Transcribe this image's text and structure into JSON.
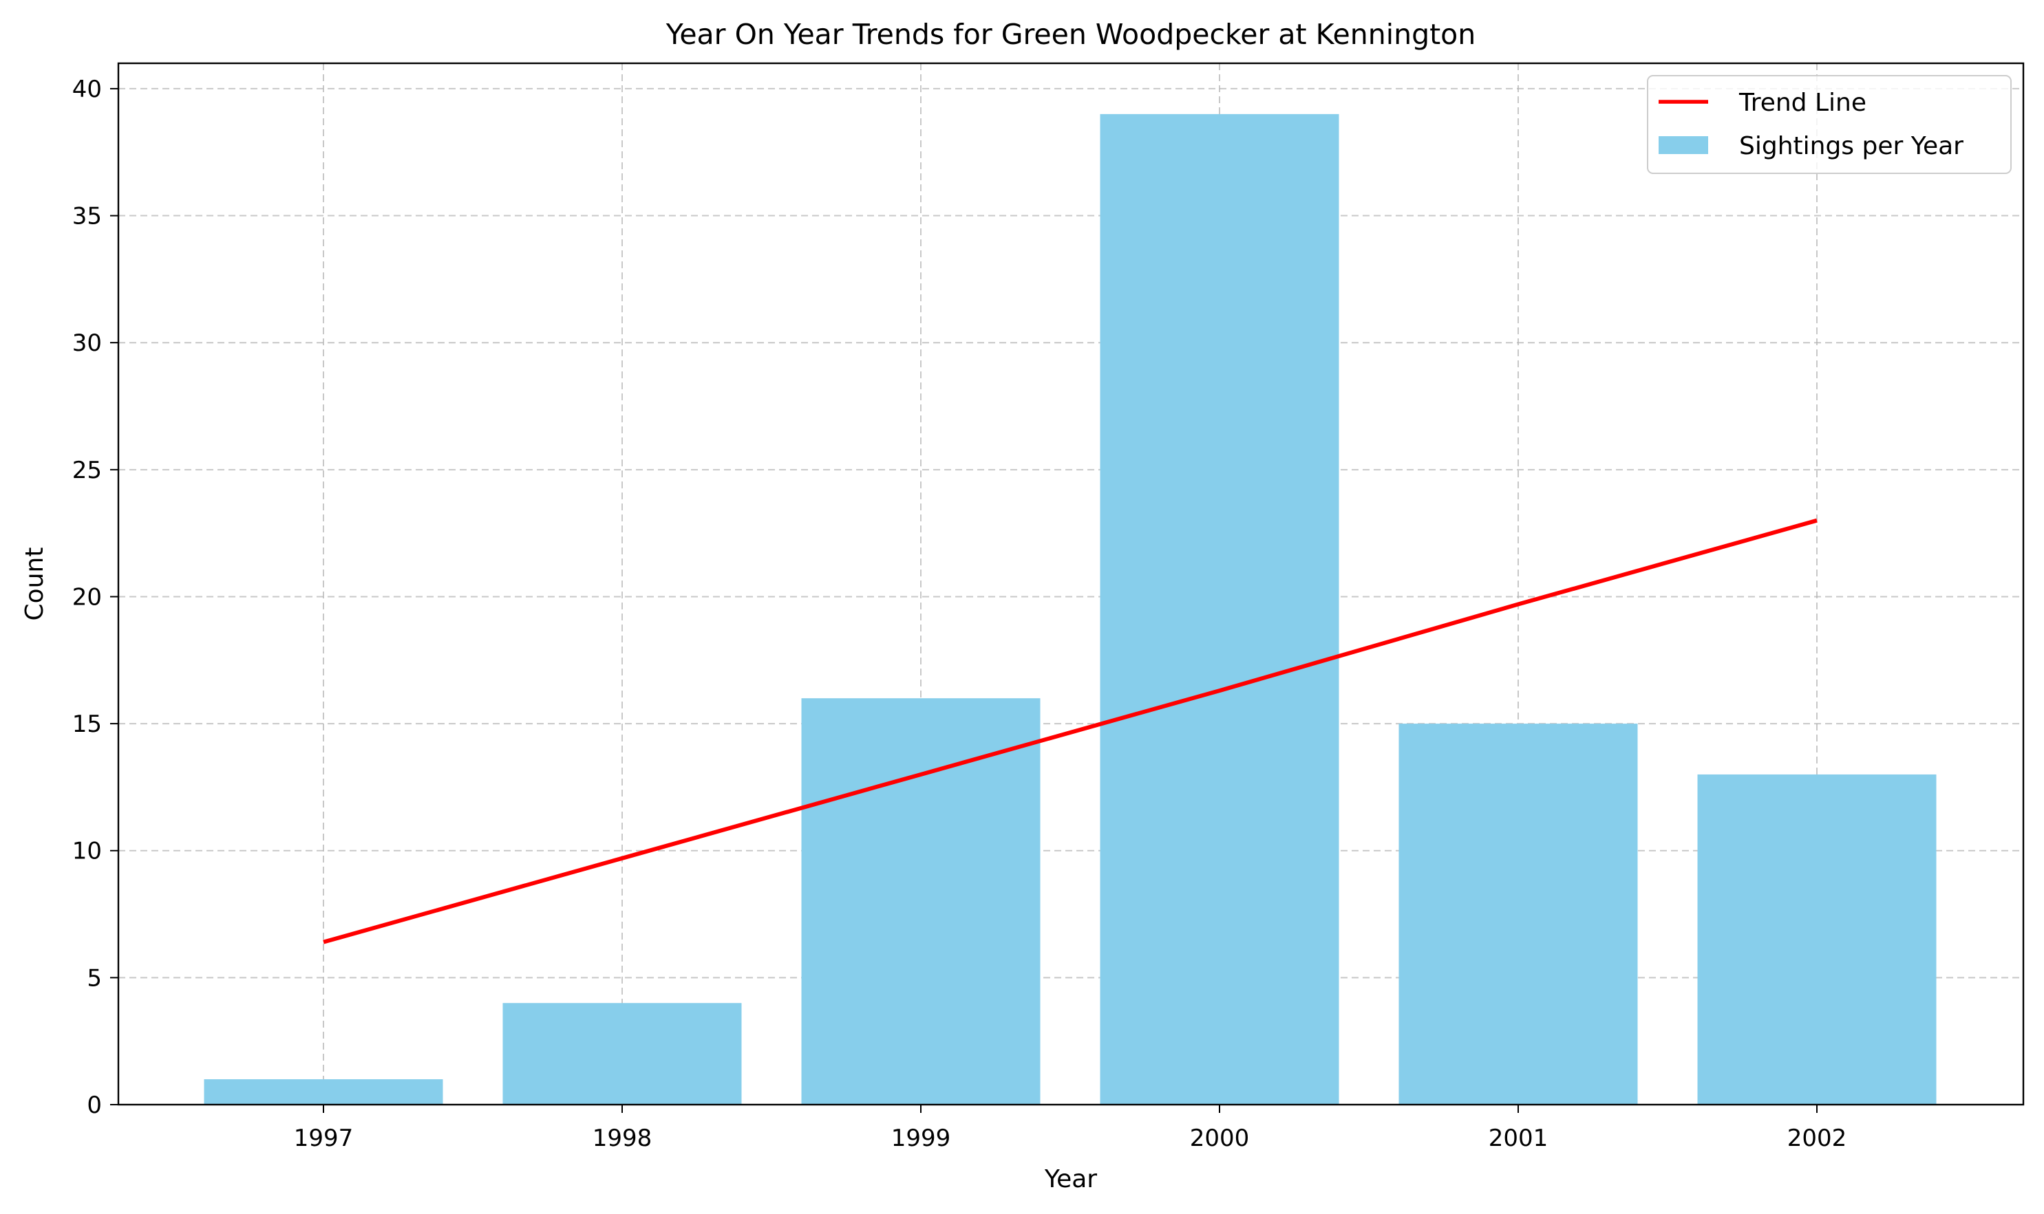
{
  "chart_data": {
    "type": "bar",
    "title": "Year On Year Trends for Green Woodpecker at Kennington",
    "xlabel": "Year",
    "ylabel": "Count",
    "categories": [
      "1997",
      "1998",
      "1999",
      "2000",
      "2001",
      "2002"
    ],
    "series": [
      {
        "name": "Sightings per Year",
        "type": "bar",
        "color": "#87CEEB",
        "values": [
          1,
          4,
          16,
          39,
          15,
          13
        ]
      },
      {
        "name": "Trend Line",
        "type": "line",
        "color": "#ff0000",
        "values": [
          6.4,
          9.7,
          13.0,
          16.3,
          19.7,
          23.0
        ]
      }
    ],
    "ylim": [
      0,
      41
    ],
    "yticks": [
      0,
      5,
      10,
      15,
      20,
      25,
      30,
      35,
      40
    ],
    "grid": true,
    "grid_style": "dashed",
    "legend_position": "top-right"
  }
}
